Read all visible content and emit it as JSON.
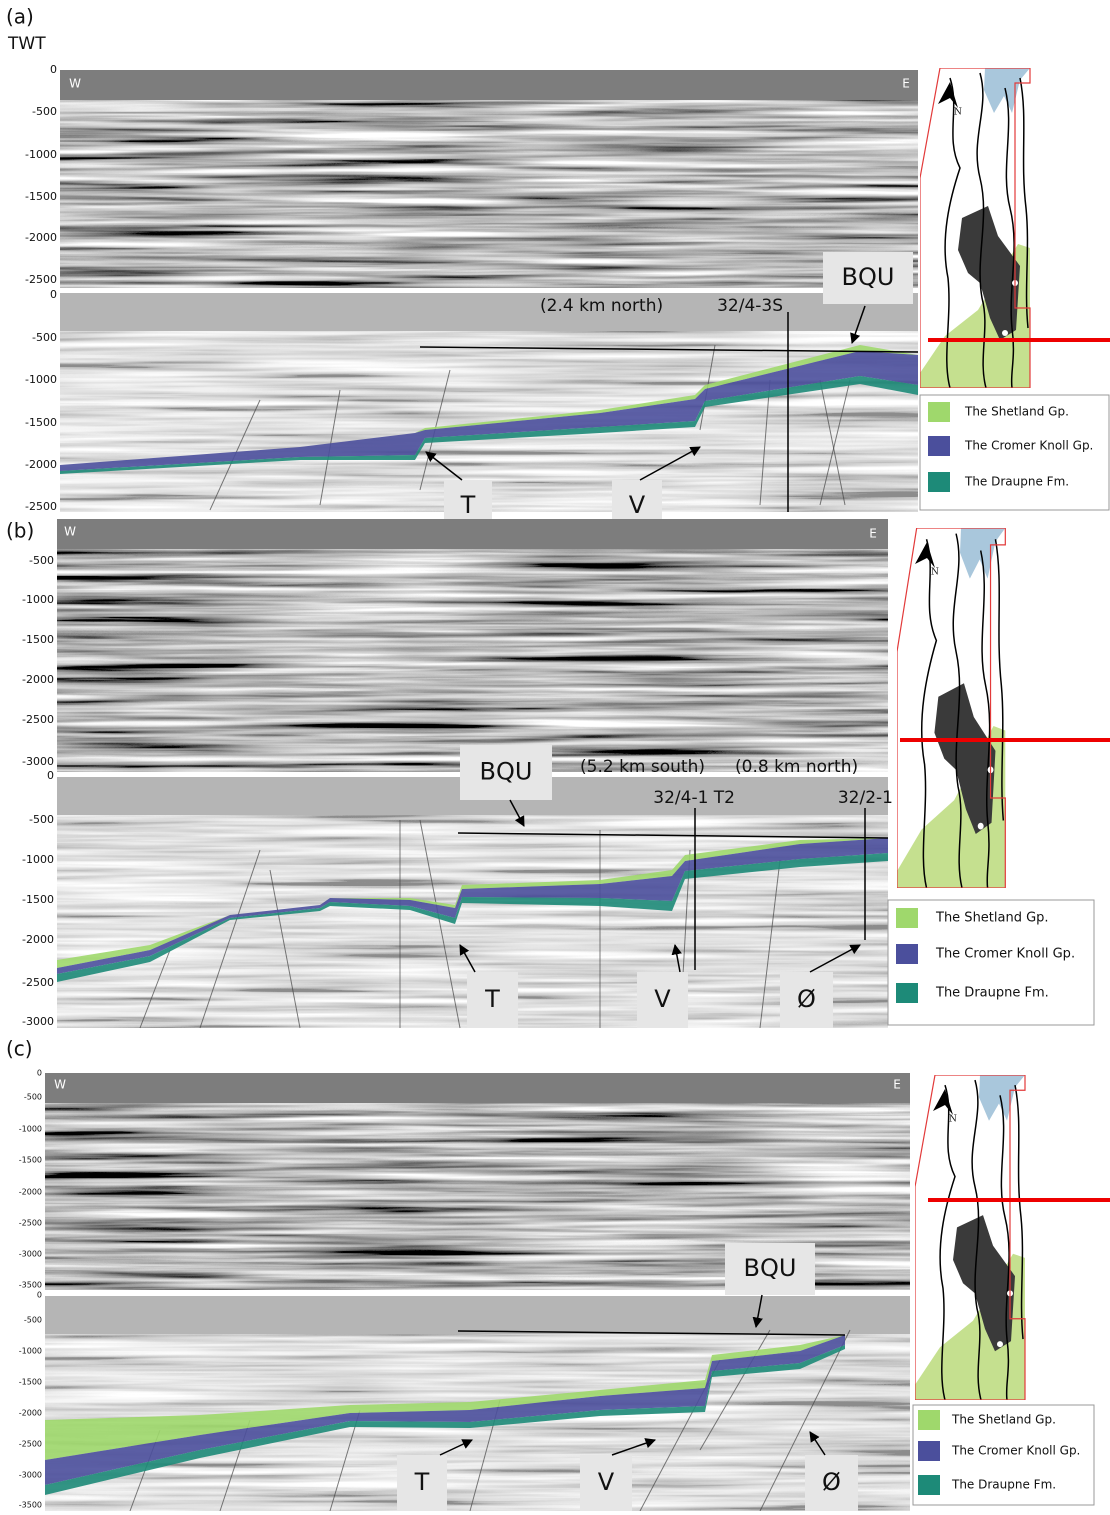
{
  "panels": [
    {
      "label": "(a)",
      "axis_title": "TWT",
      "west": "W",
      "east": "E",
      "north": "N",
      "upper_ticks": [
        "0",
        "-500",
        "-1000",
        "-1500",
        "-2000",
        "-2500"
      ],
      "lower_ticks": [
        "0",
        "-500",
        "-1000",
        "-1500",
        "-2000",
        "-2500"
      ],
      "horizon": "BQU",
      "faults": [
        "T",
        "V"
      ],
      "wells": [
        {
          "offset": "(2.4 km north)",
          "name": "32/4-3S"
        }
      ],
      "legend": [
        {
          "label": "The Shetland Gp.",
          "color": "#9fd86c"
        },
        {
          "label": "The Cromer Knoll Gp.",
          "color": "#4b4f9c"
        },
        {
          "label": "The Draupne Fm.",
          "color": "#1d8a78"
        }
      ]
    },
    {
      "label": "(b)",
      "west": "W",
      "east": "E",
      "north": "N",
      "upper_ticks": [
        "-500",
        "-1000",
        "-1500",
        "-2000",
        "-2500",
        "-3000"
      ],
      "lower_ticks": [
        "0",
        "-500",
        "-1000",
        "-1500",
        "-2000",
        "-2500",
        "-3000"
      ],
      "horizon": "BQU",
      "faults": [
        "T",
        "V",
        "Ø"
      ],
      "wells": [
        {
          "offset": "(5.2 km south)",
          "name": "32/4-1 T2"
        },
        {
          "offset": "(0.8 km north)",
          "name": "32/2-1"
        }
      ],
      "legend": [
        {
          "label": "The Shetland Gp.",
          "color": "#9fd86c"
        },
        {
          "label": "The Cromer Knoll Gp.",
          "color": "#4b4f9c"
        },
        {
          "label": "The Draupne Fm.",
          "color": "#1d8a78"
        }
      ]
    },
    {
      "label": "(c)",
      "west": "W",
      "east": "E",
      "north": "N",
      "upper_ticks": [
        "0",
        "-500",
        "-1000",
        "-1500",
        "-2000",
        "-2500",
        "-3000",
        "-3500"
      ],
      "lower_ticks": [
        "0",
        "-500",
        "-1000",
        "-1500",
        "-2000",
        "-2500",
        "-3000",
        "-3500"
      ],
      "horizon": "BQU",
      "faults": [
        "T",
        "V",
        "Ø"
      ],
      "wells": [],
      "legend": [
        {
          "label": "The Shetland Gp.",
          "color": "#9fd86c"
        },
        {
          "label": "The Cromer Knoll Gp.",
          "color": "#4b4f9c"
        },
        {
          "label": "The Draupne Fm.",
          "color": "#1d8a78"
        }
      ]
    }
  ]
}
